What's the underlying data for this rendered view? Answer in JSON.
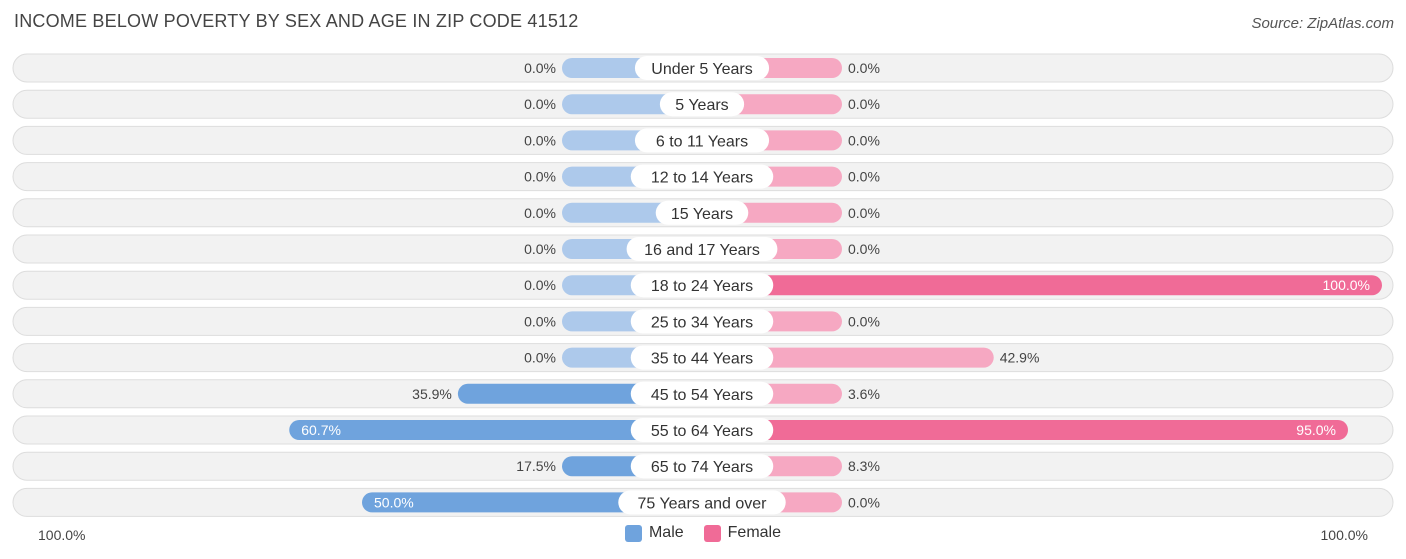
{
  "title": "INCOME BELOW POVERTY BY SEX AND AGE IN ZIP CODE 41512",
  "source": "Source: ZipAtlas.com",
  "axis": {
    "left_label": "100.0%",
    "right_label": "100.0%"
  },
  "legend": [
    {
      "label": "Male",
      "color": "#6fa3dd"
    },
    {
      "label": "Female",
      "color": "#f06b97"
    }
  ],
  "chart_data": {
    "type": "bar",
    "orientation": "horizontal-diverging",
    "xlim": [
      -100,
      100
    ],
    "categories": [
      "Under 5 Years",
      "5 Years",
      "6 to 11 Years",
      "12 to 14 Years",
      "15 Years",
      "16 and 17 Years",
      "18 to 24 Years",
      "25 to 34 Years",
      "35 to 44 Years",
      "45 to 54 Years",
      "55 to 64 Years",
      "65 to 74 Years",
      "75 Years and over"
    ],
    "series": [
      {
        "name": "Male",
        "values": [
          0.0,
          0.0,
          0.0,
          0.0,
          0.0,
          0.0,
          0.0,
          0.0,
          0.0,
          35.9,
          60.7,
          17.5,
          50.0
        ],
        "labels": [
          "0.0%",
          "0.0%",
          "0.0%",
          "0.0%",
          "0.0%",
          "0.0%",
          "0.0%",
          "0.0%",
          "0.0%",
          "35.9%",
          "60.7%",
          "17.5%",
          "50.0%"
        ]
      },
      {
        "name": "Female",
        "values": [
          0.0,
          0.0,
          0.0,
          0.0,
          0.0,
          0.0,
          100.0,
          0.0,
          42.9,
          3.6,
          95.0,
          8.3,
          0.0
        ],
        "labels": [
          "0.0%",
          "0.0%",
          "0.0%",
          "0.0%",
          "0.0%",
          "0.0%",
          "100.0%",
          "0.0%",
          "42.9%",
          "3.6%",
          "95.0%",
          "8.3%",
          "0.0%"
        ]
      }
    ],
    "colors": {
      "male_light": "#adc9eb",
      "male_dark": "#6fa3dd",
      "female_light": "#f6a8c2",
      "female_dark": "#f06b97"
    },
    "legend_position": "bottom-center",
    "grid": false
  }
}
